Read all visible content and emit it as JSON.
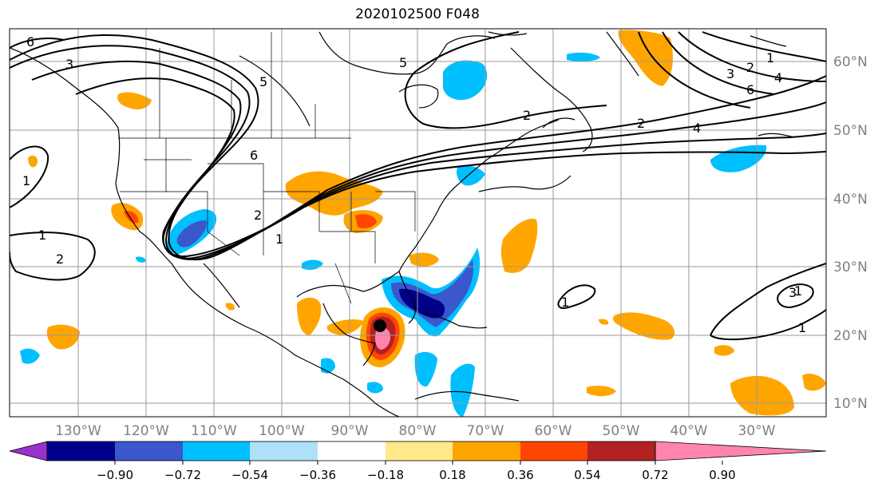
{
  "title": "2020102500 F048",
  "longitude_labels": [
    "130°W",
    "120°W",
    "110°W",
    "100°W",
    "90°W",
    "80°W",
    "70°W",
    "60°W",
    "50°W",
    "40°W",
    "30°W"
  ],
  "latitude_labels": [
    "60°N",
    "50°N",
    "40°N",
    "30°N",
    "20°N",
    "10°N"
  ],
  "contour_labels": [
    "6",
    "3",
    "5",
    "1",
    "2",
    "3",
    "4",
    "6",
    "2",
    "4",
    "6",
    "1",
    "1",
    "2",
    "1",
    "2",
    "1",
    "3",
    "1",
    "5",
    "2",
    "1"
  ],
  "colorbar": {
    "tick_labels": [
      "−0.90",
      "−0.72",
      "−0.54",
      "−0.36",
      "−0.18",
      "0.18",
      "0.36",
      "0.54",
      "0.72",
      "0.90"
    ],
    "colors": [
      "#9932cc",
      "#00008b",
      "#3a57cc",
      "#00bfff",
      "#afe0fa",
      "#ffffff",
      "#ffe98a",
      "#ffa500",
      "#ff4500",
      "#b22222",
      "#ff85b0"
    ]
  },
  "storm_marker": "hurricane-center"
}
